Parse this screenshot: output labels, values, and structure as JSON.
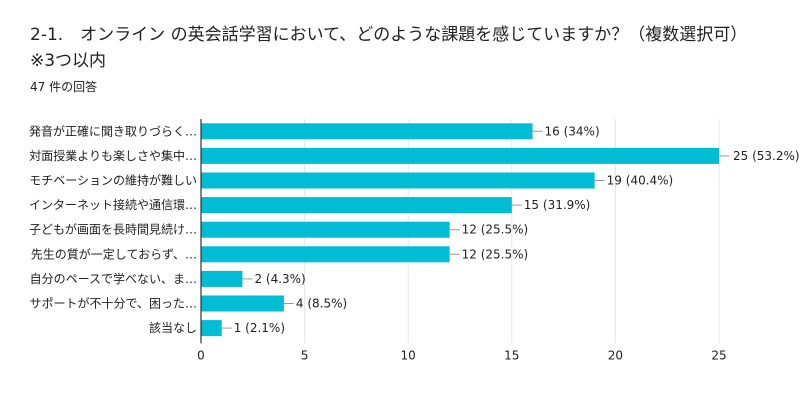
{
  "header": {
    "title": "2-1.　オンライン の英会話学習において、どのような課題を感じていますか？（複数選択可）",
    "subtitle": "※3つ以内",
    "response_count": "47 件の回答"
  },
  "chart_data": {
    "type": "bar",
    "orientation": "horizontal",
    "categories": [
      "発音が正確に聞き取りづらく…",
      "対面授業よりも楽しさや集中…",
      "モチベーションの維持が難しい",
      "インターネット接続や通信環…",
      "子どもが画面を長時間見続け…",
      "先生の質が一定しておらず、…",
      "自分のペースで学べない、ま…",
      "サポートが不十分で、困った…",
      "該当なし"
    ],
    "values": [
      16,
      25,
      19,
      15,
      12,
      12,
      2,
      4,
      1
    ],
    "data_labels": [
      "16 (34%)",
      "25 (53.2%)",
      "19 (40.4%)",
      "15 (31.9%)",
      "12 (25.5%)",
      "12 (25.5%)",
      "2 (4.3%)",
      "4 (8.5%)",
      "1 (2.1%)"
    ],
    "xlim": [
      0,
      25
    ],
    "xticks": [
      "0",
      "5",
      "10",
      "15",
      "20",
      "25"
    ],
    "grid": true,
    "bar_color": "#00bcd4"
  }
}
